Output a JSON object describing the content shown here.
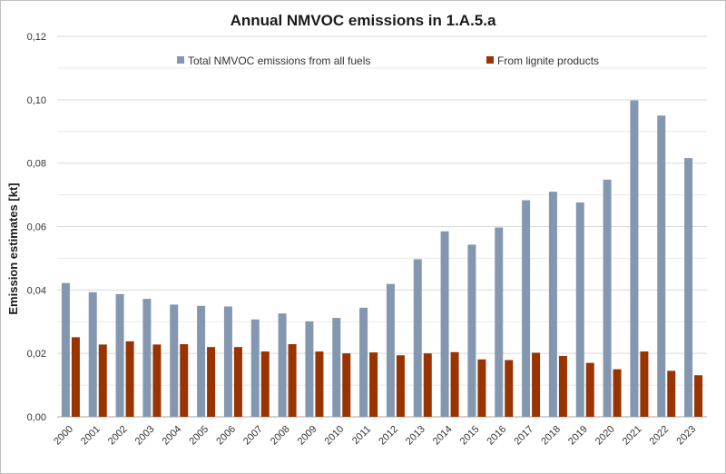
{
  "chart_data": {
    "type": "bar",
    "title": "Annual NMVOC emissions in 1.A.5.a",
    "xlabel": "",
    "ylabel": "Emission estimates [kt]",
    "ylim": [
      0,
      0.12
    ],
    "yticks": [
      0,
      0.02,
      0.04,
      0.06,
      0.08,
      0.1,
      0.12
    ],
    "ytick_labels": [
      "0,00",
      "0,02",
      "0,04",
      "0,06",
      "0,08",
      "0,10",
      "0,12"
    ],
    "grid": true,
    "legend_position": "top",
    "categories": [
      "2000",
      "2001",
      "2002",
      "2003",
      "2004",
      "2005",
      "2006",
      "2007",
      "2008",
      "2009",
      "2010",
      "2011",
      "2012",
      "2013",
      "2014",
      "2015",
      "2016",
      "2017",
      "2018",
      "2019",
      "2020",
      "2021",
      "2022",
      "2023"
    ],
    "series": [
      {
        "name": "Total NMVOC emissions from all fuels",
        "color": "#8497b0",
        "values": [
          0.0422,
          0.0393,
          0.0387,
          0.0372,
          0.0354,
          0.035,
          0.0348,
          0.0307,
          0.0326,
          0.0301,
          0.0312,
          0.0344,
          0.0419,
          0.0497,
          0.0585,
          0.0543,
          0.0597,
          0.0683,
          0.071,
          0.0676,
          0.0748,
          0.0998,
          0.095,
          0.0816
        ]
      },
      {
        "name": "From lignite products",
        "color": "#993300",
        "values": [
          0.0251,
          0.0228,
          0.0238,
          0.0228,
          0.0229,
          0.022,
          0.022,
          0.0206,
          0.0229,
          0.0206,
          0.02,
          0.0203,
          0.0194,
          0.02,
          0.0204,
          0.0181,
          0.0179,
          0.0202,
          0.0192,
          0.017,
          0.015,
          0.0206,
          0.0145,
          0.0131
        ]
      }
    ]
  }
}
